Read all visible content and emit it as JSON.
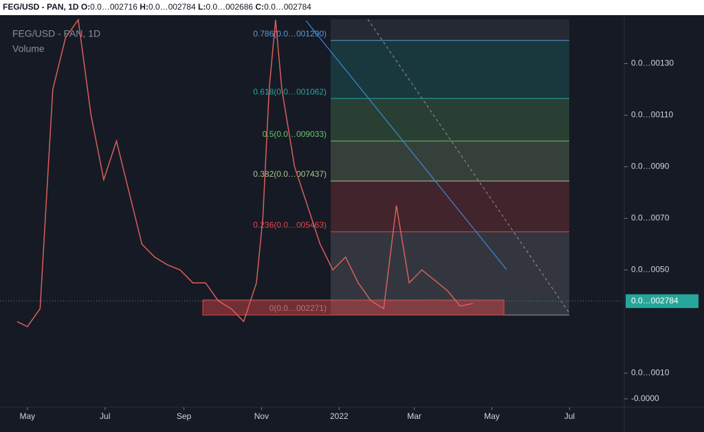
{
  "header": {
    "symbol": "FEG/USD - PAN, 1D",
    "fields": [
      {
        "label": "O:",
        "value": "0.0…002716"
      },
      {
        "label": "H:",
        "value": "0.0…002784"
      },
      {
        "label": "L:",
        "value": "0.0…002686"
      },
      {
        "label": "C:",
        "value": "0.0…002784"
      }
    ]
  },
  "chart_data": {
    "type": "line",
    "indicator": "Volume",
    "x": [
      -8,
      0,
      10,
      20,
      30,
      40,
      50,
      60,
      70,
      80,
      90,
      100,
      110,
      120,
      130,
      140,
      150,
      160,
      170,
      180,
      185,
      190,
      195,
      200,
      210,
      220,
      230,
      240,
      250,
      260,
      270,
      280,
      290,
      295,
      300,
      310,
      320,
      330,
      340,
      350
    ],
    "series": [
      {
        "name": "FEG/USD - PAN, 1D",
        "color": "#d9605a",
        "values": [
          30,
          28,
          35,
          120,
          140,
          147,
          110,
          85,
          100,
          80,
          60,
          55,
          52,
          50,
          45,
          45,
          38,
          35,
          30,
          45,
          70,
          120,
          147,
          120,
          90,
          75,
          60,
          50,
          55,
          45,
          38,
          35,
          75,
          60,
          45,
          50,
          46,
          42,
          36,
          37
        ]
      }
    ],
    "xlim": [
      -21.5,
      469
    ],
    "xticks": [
      {
        "value": 0,
        "label": "May"
      },
      {
        "value": 61,
        "label": "Jul"
      },
      {
        "value": 123,
        "label": "Sep"
      },
      {
        "value": 184,
        "label": "Nov"
      },
      {
        "value": 245,
        "label": "2022"
      },
      {
        "value": 304,
        "label": "Mar"
      },
      {
        "value": 365,
        "label": "May"
      },
      {
        "value": 426,
        "label": "Jul"
      }
    ],
    "ylim": [
      -2.7,
      147.2
    ],
    "yticks": [
      {
        "value": 130,
        "label": "0.0…00130"
      },
      {
        "value": 110,
        "label": "0.0…00110"
      },
      {
        "value": 90,
        "label": "0.0…0090"
      },
      {
        "value": 70,
        "label": "0.0…0070"
      },
      {
        "value": 50,
        "label": "0.0…0050"
      },
      {
        "value": 10,
        "label": "0.0…0010"
      },
      {
        "value": 0,
        "label": "-0.0000"
      }
    ],
    "last_price": {
      "value": 37.9,
      "label": "0.0…002784"
    },
    "fib_levels": [
      {
        "label": "0.786(0.0…001290)",
        "value": 139,
        "color": "#5b9bd5"
      },
      {
        "label": "0.618(0.0…001062)",
        "value": 116.5,
        "color": "#26a69a"
      },
      {
        "label": "0.5(0.0…009033)",
        "value": 100,
        "color": "#6cc26c"
      },
      {
        "label": "0.382(0.0…007437)",
        "value": 84.5,
        "color": "#a8c88a"
      },
      {
        "label": "0.236(0.0…005463)",
        "value": 64.8,
        "color": "#e04848"
      },
      {
        "label": "0(0.0…002271)",
        "value": 32.5,
        "color": "#9a9a9a"
      }
    ]
  }
}
